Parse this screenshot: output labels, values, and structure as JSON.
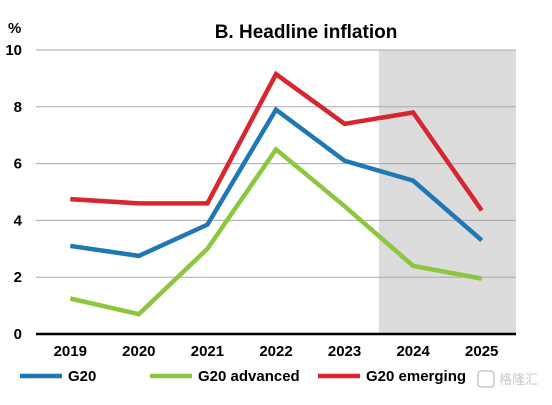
{
  "chart_data": {
    "type": "line",
    "title": "B. Headline inflation",
    "ylabel": "%",
    "xlabel": "",
    "categories": [
      "2019",
      "2020",
      "2021",
      "2022",
      "2023",
      "2024",
      "2025"
    ],
    "ylim": [
      0,
      10
    ],
    "yticks": [
      "0",
      "2",
      "4",
      "6",
      "8",
      "10"
    ],
    "grid": true,
    "legend_position": "bottom",
    "shaded_region": {
      "from": "2023.5",
      "to": "2025.5",
      "color": "#dcdcdc"
    },
    "series": [
      {
        "name": "G20",
        "color": "#1f77b4",
        "values": [
          3.1,
          2.75,
          3.85,
          7.9,
          6.1,
          5.4,
          3.3
        ]
      },
      {
        "name": "G20 advanced",
        "color": "#8dc63f",
        "values": [
          1.25,
          0.7,
          3.0,
          6.5,
          4.5,
          2.4,
          1.95
        ]
      },
      {
        "name": "G20 emerging",
        "color": "#d7262f",
        "values": [
          4.75,
          4.6,
          4.6,
          9.15,
          7.4,
          7.8,
          4.35
        ]
      }
    ]
  },
  "watermark": {
    "text": "格隆汇"
  }
}
